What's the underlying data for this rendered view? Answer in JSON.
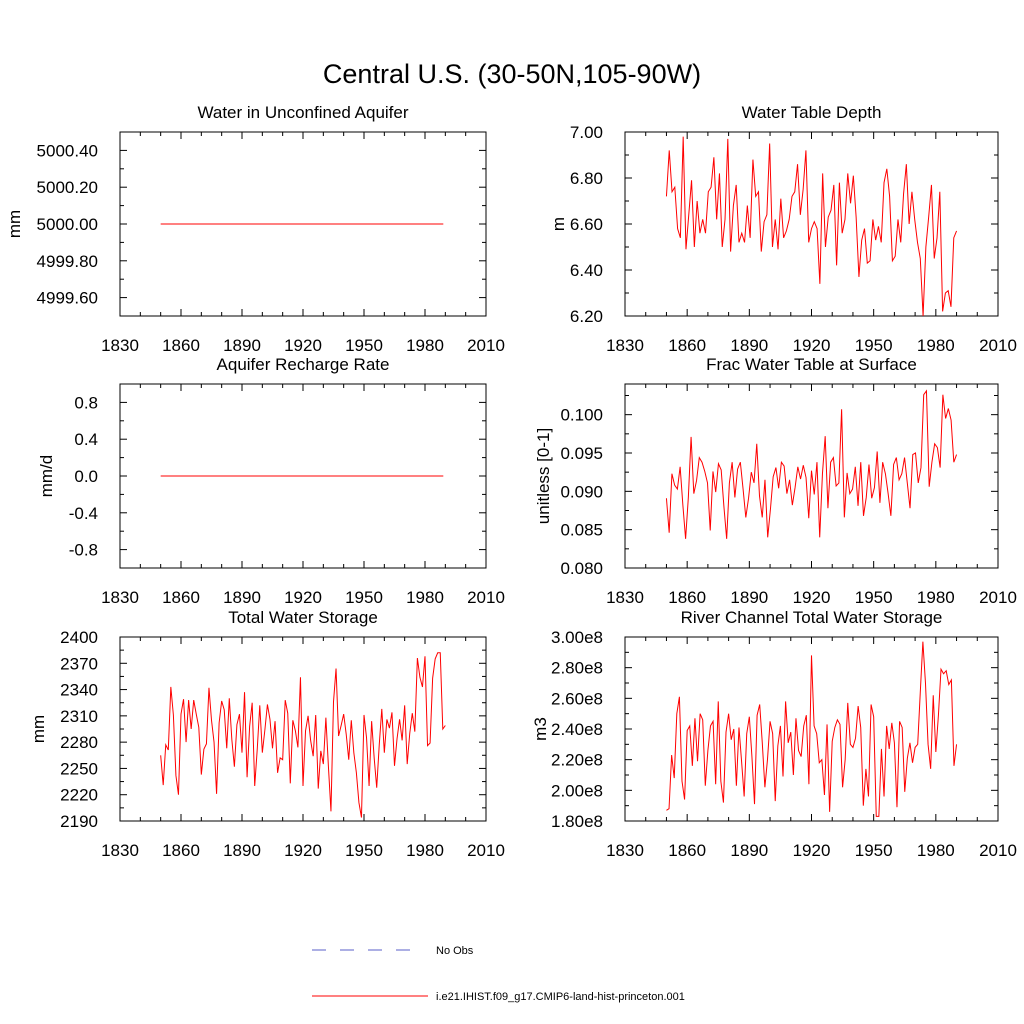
{
  "page_title": "Central U.S. (30-50N,105-90W)",
  "legend": {
    "items": [
      {
        "label": "No Obs",
        "color": "#5a5fc8",
        "style": "dashed"
      },
      {
        "label": "i.e21.IHIST.f09_g17.CMIP6-land-hist-princeton.001",
        "color": "#ff0000",
        "style": "solid"
      }
    ]
  },
  "chart_data": [
    {
      "type": "line",
      "title": "Water in Unconfined Aquifer",
      "ylabel": "mm",
      "xlim": [
        1830,
        2010
      ],
      "ylim": [
        4999.5,
        5000.5
      ],
      "xticks": [
        1830,
        1860,
        1890,
        1920,
        1950,
        1980,
        2010
      ],
      "yticks": [
        4999.6,
        4999.8,
        5000.0,
        5000.2,
        5000.4
      ],
      "ytick_labels": [
        "4999.60",
        "4999.80",
        "5000.00",
        "5000.20",
        "5000.40"
      ],
      "series": [
        {
          "color": "#ff0000",
          "x_start": 1850,
          "values": [
            5000.0,
            5000.0
          ]
        }
      ],
      "constant_range": [
        1850,
        1989
      ]
    },
    {
      "type": "line",
      "title": "Water Table Depth",
      "ylabel": "m",
      "xlim": [
        1830,
        2010
      ],
      "ylim": [
        6.2,
        7.0
      ],
      "xticks": [
        1830,
        1860,
        1890,
        1920,
        1950,
        1980,
        2010
      ],
      "yticks": [
        6.2,
        6.4,
        6.6,
        6.8,
        7.0
      ],
      "ytick_labels": [
        "6.20",
        "6.40",
        "6.60",
        "6.80",
        "7.00"
      ],
      "series": [
        {
          "color": "#ff0000",
          "x_start": 1850,
          "values": [
            6.72,
            6.92,
            6.74,
            6.76,
            6.58,
            6.54,
            6.98,
            6.49,
            6.64,
            6.79,
            6.5,
            6.7,
            6.56,
            6.62,
            6.56,
            6.74,
            6.76,
            6.89,
            6.62,
            6.82,
            6.5,
            6.62,
            6.97,
            6.48,
            6.68,
            6.77,
            6.52,
            6.56,
            6.52,
            6.68,
            6.54,
            6.88,
            6.72,
            6.74,
            6.48,
            6.61,
            6.64,
            6.95,
            6.5,
            6.62,
            6.49,
            6.71,
            6.54,
            6.57,
            6.62,
            6.72,
            6.74,
            6.86,
            6.64,
            6.75,
            6.92,
            6.52,
            6.58,
            6.61,
            6.58,
            6.34,
            6.82,
            6.5,
            6.63,
            6.66,
            6.77,
            6.42,
            6.78,
            6.56,
            6.62,
            6.82,
            6.69,
            6.81,
            6.63,
            6.37,
            6.53,
            6.58,
            6.43,
            6.44,
            6.62,
            6.53,
            6.59,
            6.52,
            6.78,
            6.84,
            6.72,
            6.44,
            6.46,
            6.62,
            6.52,
            6.73,
            6.86,
            6.6,
            6.74,
            6.62,
            6.52,
            6.45,
            6.2,
            6.5,
            6.63,
            6.77,
            6.45,
            6.54,
            6.74,
            6.22,
            6.3,
            6.31,
            6.24,
            6.54,
            6.57
          ]
        }
      ]
    },
    {
      "type": "line",
      "title": "Aquifer Recharge Rate",
      "ylabel": "mm/d",
      "xlim": [
        1830,
        2010
      ],
      "ylim": [
        -1.0,
        1.0
      ],
      "xticks": [
        1830,
        1860,
        1890,
        1920,
        1950,
        1980,
        2010
      ],
      "yticks": [
        -0.8,
        -0.4,
        0.0,
        0.4,
        0.8
      ],
      "ytick_labels": [
        "-0.8",
        "-0.4",
        "0.0",
        "0.4",
        "0.8"
      ],
      "series": [
        {
          "color": "#ff0000",
          "x_start": 1850,
          "values": [
            0.0,
            0.0
          ]
        }
      ],
      "constant_range": [
        1850,
        1989
      ]
    },
    {
      "type": "line",
      "title": "Frac Water Table at Surface",
      "ylabel": "unitless [0-1]",
      "xlim": [
        1830,
        2010
      ],
      "ylim": [
        0.08,
        0.104
      ],
      "xticks": [
        1830,
        1860,
        1890,
        1920,
        1950,
        1980,
        2010
      ],
      "yticks": [
        0.08,
        0.085,
        0.09,
        0.095,
        0.1
      ],
      "ytick_labels": [
        "0.080",
        "0.085",
        "0.090",
        "0.095",
        "0.100"
      ],
      "series": [
        {
          "color": "#ff0000",
          "x_start": 1850,
          "values": [
            0.0891,
            0.0846,
            0.0923,
            0.0908,
            0.0903,
            0.0932,
            0.0882,
            0.0838,
            0.0892,
            0.0971,
            0.0897,
            0.0914,
            0.0944,
            0.0938,
            0.0926,
            0.0911,
            0.0849,
            0.0926,
            0.0899,
            0.0936,
            0.0928,
            0.088,
            0.0838,
            0.0911,
            0.0938,
            0.0892,
            0.0929,
            0.0938,
            0.0903,
            0.0866,
            0.0891,
            0.0925,
            0.0911,
            0.0962,
            0.0894,
            0.0866,
            0.0915,
            0.084,
            0.0877,
            0.0919,
            0.0931,
            0.0904,
            0.0938,
            0.0933,
            0.0897,
            0.0915,
            0.0882,
            0.0905,
            0.0932,
            0.0916,
            0.0934,
            0.0918,
            0.0865,
            0.0927,
            0.0896,
            0.0938,
            0.084,
            0.0923,
            0.0972,
            0.0878,
            0.0938,
            0.0944,
            0.0907,
            0.0911,
            0.1007,
            0.0866,
            0.0924,
            0.0897,
            0.0903,
            0.0932,
            0.0881,
            0.0938,
            0.0868,
            0.0892,
            0.0935,
            0.0891,
            0.0905,
            0.0952,
            0.0885,
            0.0938,
            0.0923,
            0.0897,
            0.0868,
            0.0935,
            0.0944,
            0.0915,
            0.0923,
            0.0944,
            0.0911,
            0.0878,
            0.0948,
            0.095,
            0.0911,
            0.0931,
            0.1026,
            0.1031,
            0.0906,
            0.0938,
            0.0962,
            0.0957,
            0.0931,
            0.1026,
            0.0995,
            0.1008,
            0.0993,
            0.0938,
            0.0948
          ]
        }
      ]
    },
    {
      "type": "line",
      "title": "Total Water Storage",
      "ylabel": "mm",
      "xlim": [
        1830,
        2010
      ],
      "ylim": [
        2190,
        2400
      ],
      "xticks": [
        1830,
        1860,
        1890,
        1920,
        1950,
        1980,
        2010
      ],
      "yticks": [
        2190,
        2220,
        2250,
        2280,
        2310,
        2340,
        2370,
        2400
      ],
      "ytick_labels": [
        "2190",
        "2220",
        "2250",
        "2280",
        "2310",
        "2340",
        "2370",
        "2400"
      ],
      "series": [
        {
          "color": "#ff0000",
          "x_start": 1850,
          "values": [
            2265,
            2231,
            2277,
            2271,
            2343,
            2311,
            2242,
            2220,
            2312,
            2329,
            2280,
            2328,
            2295,
            2328,
            2312,
            2297,
            2243,
            2272,
            2278,
            2342,
            2305,
            2280,
            2221,
            2302,
            2327,
            2317,
            2273,
            2330,
            2283,
            2252,
            2300,
            2312,
            2268,
            2337,
            2240,
            2298,
            2325,
            2230,
            2272,
            2322,
            2268,
            2294,
            2323,
            2306,
            2273,
            2304,
            2245,
            2262,
            2260,
            2328,
            2313,
            2233,
            2305,
            2293,
            2274,
            2354,
            2230,
            2293,
            2310,
            2282,
            2264,
            2311,
            2227,
            2270,
            2255,
            2308,
            2252,
            2201,
            2326,
            2364,
            2287,
            2299,
            2312,
            2289,
            2260,
            2305,
            2268,
            2245,
            2211,
            2194,
            2311,
            2285,
            2230,
            2304,
            2262,
            2228,
            2277,
            2318,
            2268,
            2306,
            2296,
            2314,
            2253,
            2284,
            2306,
            2282,
            2322,
            2255,
            2290,
            2313,
            2292,
            2376,
            2354,
            2343,
            2378,
            2276,
            2279,
            2353,
            2375,
            2382,
            2382,
            2295,
            2299
          ]
        }
      ]
    },
    {
      "type": "line",
      "title": "River Channel Total Water Storage",
      "ylabel": "m3",
      "xlim": [
        1830,
        2010
      ],
      "ylim": [
        180000000.0,
        300000000.0
      ],
      "xticks": [
        1830,
        1860,
        1890,
        1920,
        1950,
        1980,
        2010
      ],
      "yticks": [
        180000000.0,
        200000000.0,
        220000000.0,
        240000000.0,
        260000000.0,
        280000000.0,
        300000000.0
      ],
      "ytick_labels": [
        "1.80e8",
        "2.00e8",
        "2.20e8",
        "2.40e8",
        "2.60e8",
        "2.80e8",
        "3.00e8"
      ],
      "series": [
        {
          "color": "#ff0000",
          "x_start": 1850,
          "values": [
            187000000.0,
            188000000.0,
            223000000.0,
            208000000.0,
            250000000.0,
            261000000.0,
            206000000.0,
            194000000.0,
            239000000.0,
            242000000.0,
            216000000.0,
            247000000.0,
            219000000.0,
            250000000.0,
            246000000.0,
            203000000.0,
            226000000.0,
            242000000.0,
            245000000.0,
            204000000.0,
            258000000.0,
            206000000.0,
            192000000.0,
            238000000.0,
            250000000.0,
            233000000.0,
            240000000.0,
            203000000.0,
            241000000.0,
            219000000.0,
            196000000.0,
            237000000.0,
            248000000.0,
            222000000.0,
            191000000.0,
            249000000.0,
            256000000.0,
            231000000.0,
            202000000.0,
            220000000.0,
            245000000.0,
            237000000.0,
            193000000.0,
            229000000.0,
            242000000.0,
            209000000.0,
            258000000.0,
            231000000.0,
            238000000.0,
            210000000.0,
            247000000.0,
            226000000.0,
            222000000.0,
            242000000.0,
            249000000.0,
            204000000.0,
            288000000.0,
            242000000.0,
            237000000.0,
            218000000.0,
            220000000.0,
            197000000.0,
            243000000.0,
            186000000.0,
            232000000.0,
            241000000.0,
            246000000.0,
            243000000.0,
            202000000.0,
            220000000.0,
            257000000.0,
            230000000.0,
            228000000.0,
            234000000.0,
            255000000.0,
            241000000.0,
            190000000.0,
            214000000.0,
            196000000.0,
            256000000.0,
            248000000.0,
            183000000.0,
            183000000.0,
            227000000.0,
            196000000.0,
            242000000.0,
            227000000.0,
            244000000.0,
            231000000.0,
            189000000.0,
            245000000.0,
            241000000.0,
            199000000.0,
            221000000.0,
            231000000.0,
            218000000.0,
            228000000.0,
            230000000.0,
            264000000.0,
            297000000.0,
            270000000.0,
            230000000.0,
            214000000.0,
            262000000.0,
            225000000.0,
            249000000.0,
            279000000.0,
            276000000.0,
            278000000.0,
            269000000.0,
            272000000.0,
            216000000.0,
            230000000.0
          ]
        }
      ]
    }
  ]
}
